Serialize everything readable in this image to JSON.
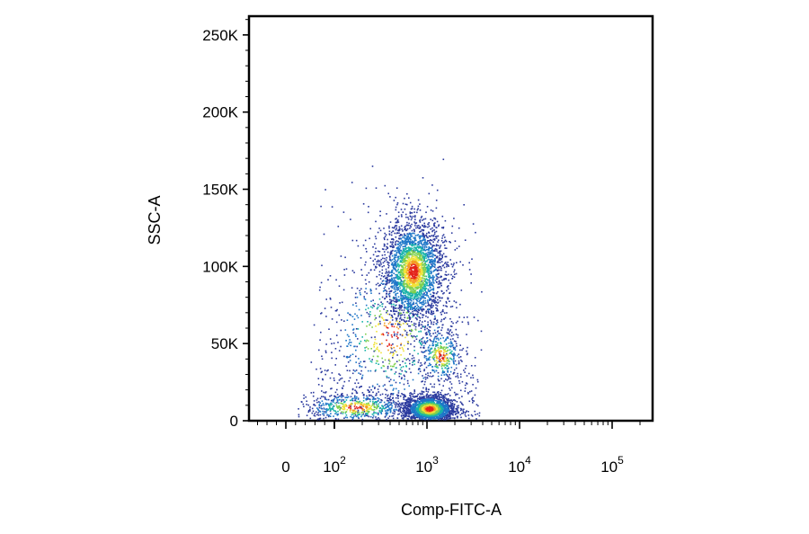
{
  "chart_data": {
    "type": "scatter",
    "style": "density-colored flow cytometry dot plot",
    "xlabel": "Comp-FITC-A",
    "ylabel": "SSC-A",
    "x_scale": "biexponential",
    "y_scale": "linear",
    "ylim": [
      0,
      262144
    ],
    "xlim": [
      -400,
      262144
    ],
    "y_ticks": [
      {
        "value": 0,
        "label": "0"
      },
      {
        "value": 50000,
        "label": "50K"
      },
      {
        "value": 100000,
        "label": "100K"
      },
      {
        "value": 150000,
        "label": "150K"
      },
      {
        "value": 200000,
        "label": "200K"
      },
      {
        "value": 250000,
        "label": "250K"
      }
    ],
    "x_ticks": [
      {
        "value": 0,
        "base": "0",
        "exp": ""
      },
      {
        "value": 100,
        "base": "10",
        "exp": "2"
      },
      {
        "value": 1000,
        "base": "10",
        "exp": "3"
      },
      {
        "value": 10000,
        "base": "10",
        "exp": "4"
      },
      {
        "value": 100000,
        "base": "10",
        "exp": "5"
      }
    ],
    "grid": false,
    "density_colors": [
      "#2b3a9e",
      "#1f77c8",
      "#19b3a8",
      "#7ed04f",
      "#f0e33a",
      "#f59a23",
      "#e3231b"
    ],
    "populations": [
      {
        "x_center": 700,
        "y_center": 97000,
        "x_log_spread": 0.17,
        "y_spread": 17000,
        "count": 2600
      },
      {
        "x_center": 1050,
        "y_center": 8000,
        "x_log_spread": 0.14,
        "y_spread": 4500,
        "count": 1800
      },
      {
        "x_center": 1400,
        "y_center": 42000,
        "x_log_spread": 0.12,
        "y_spread": 9000,
        "count": 350
      },
      {
        "x_center": 170,
        "y_center": 9000,
        "x_log_spread": 0.3,
        "y_spread": 5000,
        "count": 550
      },
      {
        "x_center": 400,
        "y_center": 55000,
        "x_log_spread": 0.35,
        "y_spread": 25000,
        "count": 500
      }
    ]
  }
}
